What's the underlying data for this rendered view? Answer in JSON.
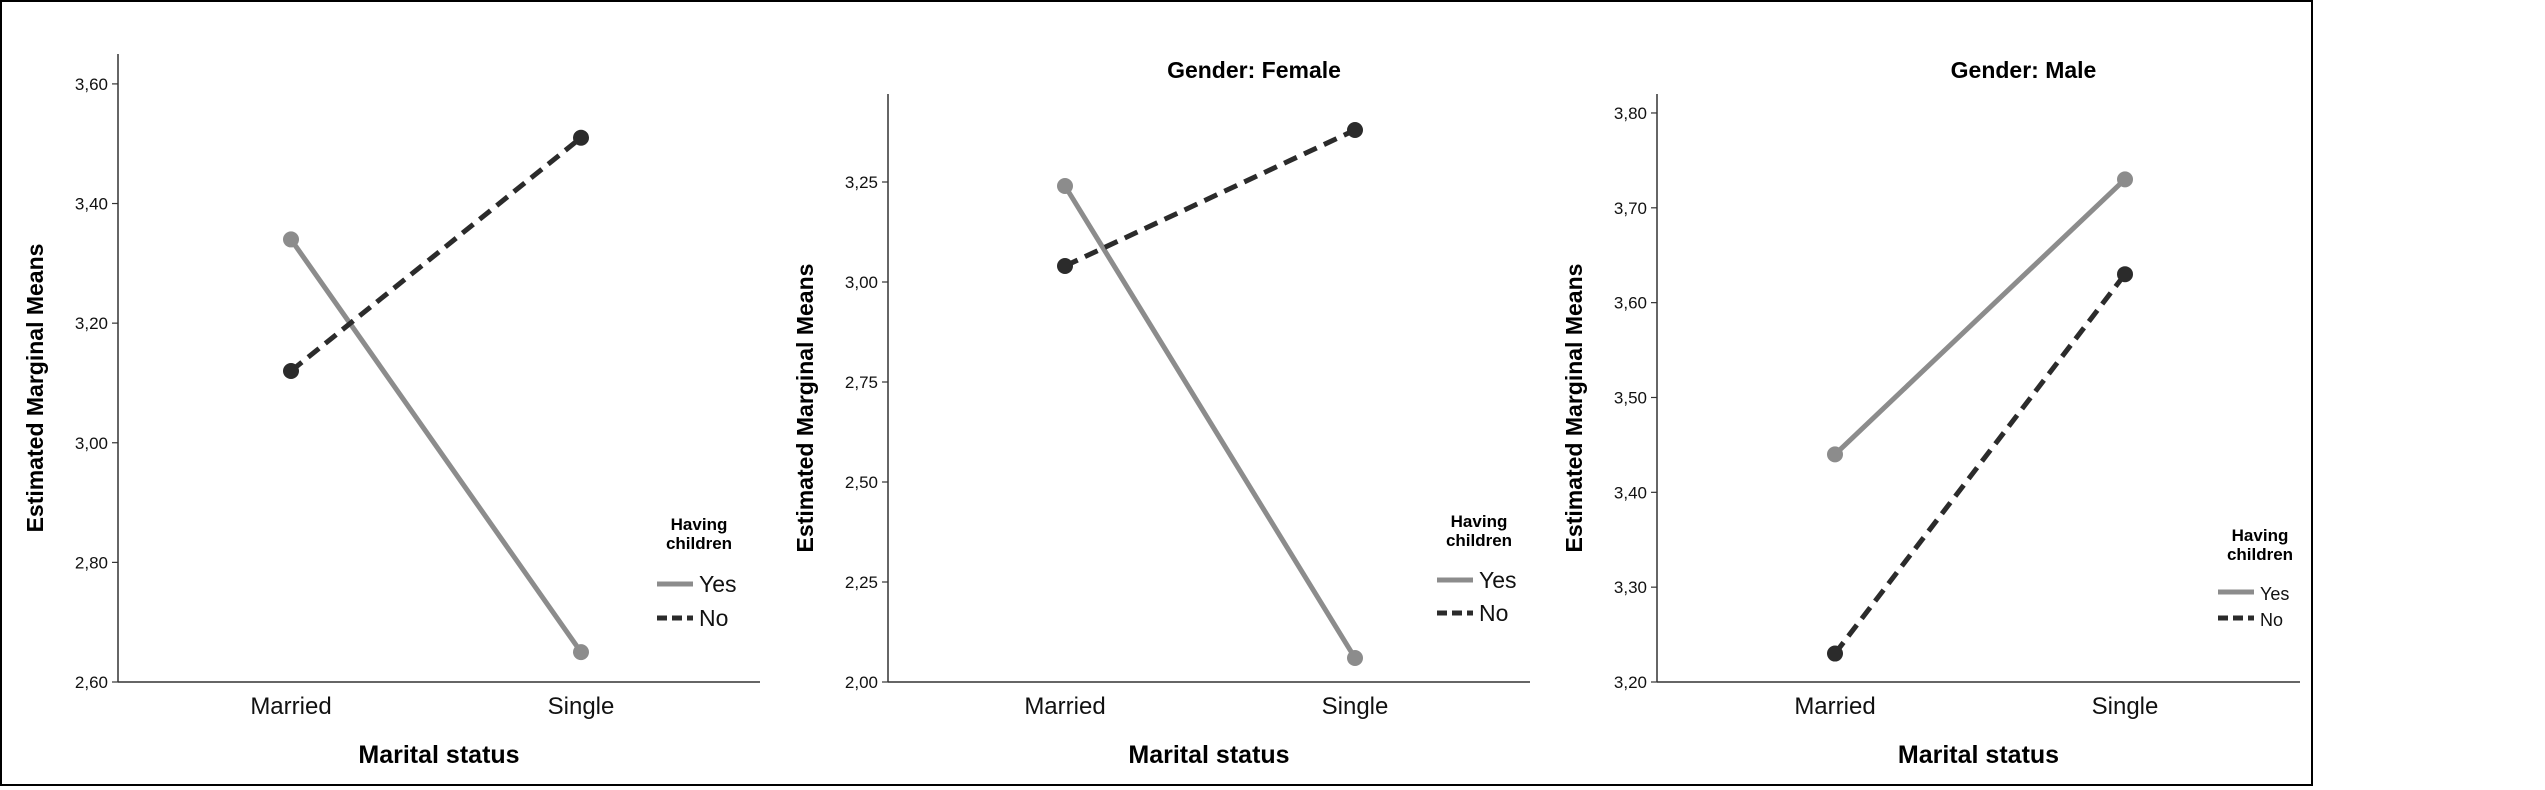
{
  "chart_data": [
    {
      "type": "line",
      "title": "",
      "xlabel": "Marital status",
      "ylabel": "Estimated Marginal Means",
      "categories": [
        "Married",
        "Single"
      ],
      "ylim": [
        2.6,
        3.65
      ],
      "yticks": [
        "2,60",
        "2,80",
        "3,00",
        "3,20",
        "3,40",
        "3,60"
      ],
      "ytick_values": [
        2.6,
        2.8,
        3.0,
        3.2,
        3.4,
        3.6
      ],
      "legend_title": [
        "Having",
        "children"
      ],
      "legend_position": "right",
      "series": [
        {
          "name": "Yes",
          "values": [
            3.34,
            2.65
          ],
          "color": "#8c8c8c",
          "dash": false
        },
        {
          "name": "No",
          "values": [
            3.12,
            3.51
          ],
          "color": "#2b2b2b",
          "dash": true
        }
      ]
    },
    {
      "type": "line",
      "title": "Gender: Female",
      "xlabel": "Marital status",
      "ylabel": "Estimated Marginal Means",
      "categories": [
        "Married",
        "Single"
      ],
      "ylim": [
        2.0,
        3.47
      ],
      "yticks": [
        "2,00",
        "2,25",
        "2,50",
        "2,75",
        "3,00",
        "3,25"
      ],
      "ytick_values": [
        2.0,
        2.25,
        2.5,
        2.75,
        3.0,
        3.25
      ],
      "legend_title": [
        "Having",
        "children"
      ],
      "legend_position": "right",
      "series": [
        {
          "name": "Yes",
          "values": [
            3.24,
            2.06
          ],
          "color": "#8c8c8c",
          "dash": false
        },
        {
          "name": "No",
          "values": [
            3.04,
            3.38
          ],
          "color": "#2b2b2b",
          "dash": true
        }
      ]
    },
    {
      "type": "line",
      "title": "Gender: Male",
      "xlabel": "Marital status",
      "ylabel": "Estimated Marginal Means",
      "categories": [
        "Married",
        "Single"
      ],
      "ylim": [
        3.2,
        3.82
      ],
      "yticks": [
        "3,20",
        "3,30",
        "3,40",
        "3,50",
        "3,60",
        "3,70",
        "3,80"
      ],
      "ytick_values": [
        3.2,
        3.3,
        3.4,
        3.5,
        3.6,
        3.7,
        3.8
      ],
      "legend_title": [
        "Having",
        "children"
      ],
      "legend_position": "right",
      "series": [
        {
          "name": "Yes",
          "values": [
            3.44,
            3.73
          ],
          "color": "#8c8c8c",
          "dash": false
        },
        {
          "name": "No",
          "values": [
            3.23,
            3.63
          ],
          "color": "#2b2b2b",
          "dash": true
        }
      ]
    }
  ]
}
